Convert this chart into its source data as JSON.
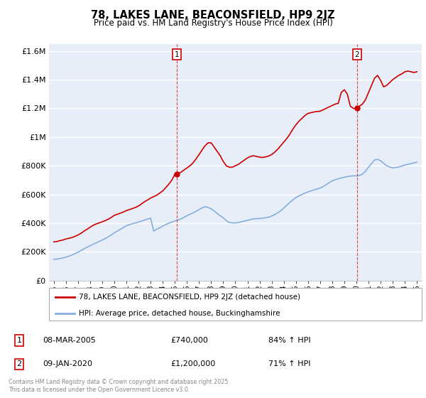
{
  "title": "78, LAKES LANE, BEACONSFIELD, HP9 2JZ",
  "subtitle": "Price paid vs. HM Land Registry's House Price Index (HPI)",
  "legend_line1": "78, LAKES LANE, BEACONSFIELD, HP9 2JZ (detached house)",
  "legend_line2": "HPI: Average price, detached house, Buckinghamshire",
  "annotation1": {
    "label": "1",
    "date": "08-MAR-2005",
    "price": "£740,000",
    "hpi": "84% ↑ HPI",
    "x_val": 2005.18,
    "y": 740000
  },
  "annotation2": {
    "label": "2",
    "date": "09-JAN-2020",
    "price": "£1,200,000",
    "hpi": "71% ↑ HPI",
    "x_val": 2020.04,
    "y": 1200000
  },
  "red_color": "#cc0000",
  "blue_color": "#88aedd",
  "plot_bg_color": "#e8eef8",
  "grid_color": "#ffffff",
  "background_color": "#ffffff",
  "ylim": [
    0,
    1650000
  ],
  "yticks": [
    0,
    200000,
    400000,
    600000,
    800000,
    1000000,
    1200000,
    1400000,
    1600000
  ],
  "ytick_labels": [
    "£0",
    "£200K",
    "£400K",
    "£600K",
    "£800K",
    "£1M",
    "£1.2M",
    "£1.4M",
    "£1.6M"
  ],
  "x_start": 1994.6,
  "x_end": 2025.4,
  "xtick_years": [
    1995,
    1996,
    1997,
    1998,
    1999,
    2000,
    2001,
    2002,
    2003,
    2004,
    2005,
    2006,
    2007,
    2008,
    2009,
    2010,
    2011,
    2012,
    2013,
    2014,
    2015,
    2016,
    2017,
    2018,
    2019,
    2020,
    2021,
    2022,
    2023,
    2024,
    2025
  ],
  "footer": "Contains HM Land Registry data © Crown copyright and database right 2025.\nThis data is licensed under the Open Government Licence v3.0.",
  "red_x": [
    1995.0,
    1995.25,
    1995.5,
    1995.75,
    1996.0,
    1996.25,
    1996.5,
    1996.75,
    1997.0,
    1997.25,
    1997.5,
    1997.75,
    1998.0,
    1998.25,
    1998.5,
    1998.75,
    1999.0,
    1999.25,
    1999.5,
    1999.75,
    2000.0,
    2000.25,
    2000.5,
    2000.75,
    2001.0,
    2001.25,
    2001.5,
    2001.75,
    2002.0,
    2002.25,
    2002.5,
    2002.75,
    2003.0,
    2003.25,
    2003.5,
    2003.75,
    2004.0,
    2004.25,
    2004.5,
    2004.75,
    2005.0,
    2005.18,
    2005.25,
    2005.5,
    2005.75,
    2006.0,
    2006.25,
    2006.5,
    2006.75,
    2007.0,
    2007.25,
    2007.5,
    2007.75,
    2008.0,
    2008.25,
    2008.5,
    2008.75,
    2009.0,
    2009.25,
    2009.5,
    2009.75,
    2010.0,
    2010.25,
    2010.5,
    2010.75,
    2011.0,
    2011.25,
    2011.5,
    2011.75,
    2012.0,
    2012.25,
    2012.5,
    2012.75,
    2013.0,
    2013.25,
    2013.5,
    2013.75,
    2014.0,
    2014.25,
    2014.5,
    2014.75,
    2015.0,
    2015.25,
    2015.5,
    2015.75,
    2016.0,
    2016.25,
    2016.5,
    2016.75,
    2017.0,
    2017.25,
    2017.5,
    2017.75,
    2018.0,
    2018.25,
    2018.5,
    2018.75,
    2019.0,
    2019.25,
    2019.5,
    2019.75,
    2020.0,
    2020.04,
    2020.25,
    2020.5,
    2020.75,
    2021.0,
    2021.25,
    2021.5,
    2021.75,
    2022.0,
    2022.25,
    2022.5,
    2022.75,
    2023.0,
    2023.25,
    2023.5,
    2023.75,
    2024.0,
    2024.25,
    2024.5,
    2024.75,
    2025.0
  ],
  "red_y": [
    270000,
    272000,
    278000,
    283000,
    290000,
    295000,
    300000,
    308000,
    318000,
    330000,
    345000,
    358000,
    372000,
    385000,
    395000,
    402000,
    410000,
    418000,
    428000,
    440000,
    455000,
    462000,
    470000,
    478000,
    488000,
    495000,
    502000,
    510000,
    520000,
    535000,
    550000,
    562000,
    575000,
    585000,
    595000,
    610000,
    625000,
    648000,
    672000,
    700000,
    740000,
    740000,
    745000,
    755000,
    770000,
    785000,
    800000,
    820000,
    848000,
    878000,
    910000,
    940000,
    960000,
    960000,
    930000,
    900000,
    870000,
    830000,
    800000,
    790000,
    790000,
    800000,
    810000,
    825000,
    840000,
    855000,
    865000,
    870000,
    865000,
    860000,
    858000,
    862000,
    868000,
    878000,
    895000,
    915000,
    940000,
    965000,
    990000,
    1020000,
    1055000,
    1085000,
    1110000,
    1130000,
    1150000,
    1165000,
    1170000,
    1175000,
    1178000,
    1180000,
    1190000,
    1200000,
    1210000,
    1220000,
    1230000,
    1235000,
    1310000,
    1330000,
    1300000,
    1215000,
    1200000,
    1200000,
    1205000,
    1215000,
    1230000,
    1260000,
    1310000,
    1360000,
    1410000,
    1430000,
    1395000,
    1350000,
    1360000,
    1380000,
    1400000,
    1415000,
    1430000,
    1440000,
    1455000,
    1460000,
    1455000,
    1450000,
    1455000
  ],
  "blue_x": [
    1995.0,
    1995.25,
    1995.5,
    1995.75,
    1996.0,
    1996.25,
    1996.5,
    1996.75,
    1997.0,
    1997.25,
    1997.5,
    1997.75,
    1998.0,
    1998.25,
    1998.5,
    1998.75,
    1999.0,
    1999.25,
    1999.5,
    1999.75,
    2000.0,
    2000.25,
    2000.5,
    2000.75,
    2001.0,
    2001.25,
    2001.5,
    2001.75,
    2002.0,
    2002.25,
    2002.5,
    2002.75,
    2003.0,
    2003.25,
    2003.5,
    2003.75,
    2004.0,
    2004.25,
    2004.5,
    2004.75,
    2005.0,
    2005.25,
    2005.5,
    2005.75,
    2006.0,
    2006.25,
    2006.5,
    2006.75,
    2007.0,
    2007.25,
    2007.5,
    2007.75,
    2008.0,
    2008.25,
    2008.5,
    2008.75,
    2009.0,
    2009.25,
    2009.5,
    2009.75,
    2010.0,
    2010.25,
    2010.5,
    2010.75,
    2011.0,
    2011.25,
    2011.5,
    2011.75,
    2012.0,
    2012.25,
    2012.5,
    2012.75,
    2013.0,
    2013.25,
    2013.5,
    2013.75,
    2014.0,
    2014.25,
    2014.5,
    2014.75,
    2015.0,
    2015.25,
    2015.5,
    2015.75,
    2016.0,
    2016.25,
    2016.5,
    2016.75,
    2017.0,
    2017.25,
    2017.5,
    2017.75,
    2018.0,
    2018.25,
    2018.5,
    2018.75,
    2019.0,
    2019.25,
    2019.5,
    2019.75,
    2020.0,
    2020.25,
    2020.5,
    2020.75,
    2021.0,
    2021.25,
    2021.5,
    2021.75,
    2022.0,
    2022.25,
    2022.5,
    2022.75,
    2023.0,
    2023.25,
    2023.5,
    2023.75,
    2024.0,
    2024.25,
    2024.5,
    2024.75,
    2025.0
  ],
  "blue_y": [
    148000,
    150000,
    153000,
    158000,
    163000,
    170000,
    178000,
    188000,
    198000,
    210000,
    222000,
    233000,
    243000,
    253000,
    263000,
    273000,
    283000,
    293000,
    305000,
    318000,
    333000,
    345000,
    358000,
    370000,
    382000,
    390000,
    397000,
    402000,
    408000,
    415000,
    422000,
    428000,
    435000,
    345000,
    358000,
    368000,
    380000,
    390000,
    400000,
    408000,
    415000,
    422000,
    430000,
    440000,
    452000,
    462000,
    472000,
    482000,
    495000,
    507000,
    515000,
    510000,
    500000,
    485000,
    468000,
    452000,
    438000,
    418000,
    405000,
    402000,
    402000,
    405000,
    410000,
    415000,
    420000,
    425000,
    430000,
    432000,
    432000,
    435000,
    438000,
    442000,
    450000,
    460000,
    472000,
    487000,
    505000,
    525000,
    545000,
    562000,
    578000,
    590000,
    600000,
    610000,
    618000,
    625000,
    632000,
    638000,
    645000,
    655000,
    668000,
    682000,
    695000,
    703000,
    710000,
    715000,
    720000,
    725000,
    728000,
    730000,
    730000,
    732000,
    742000,
    762000,
    790000,
    815000,
    840000,
    845000,
    835000,
    818000,
    800000,
    792000,
    785000,
    788000,
    792000,
    798000,
    805000,
    810000,
    815000,
    820000,
    825000
  ]
}
